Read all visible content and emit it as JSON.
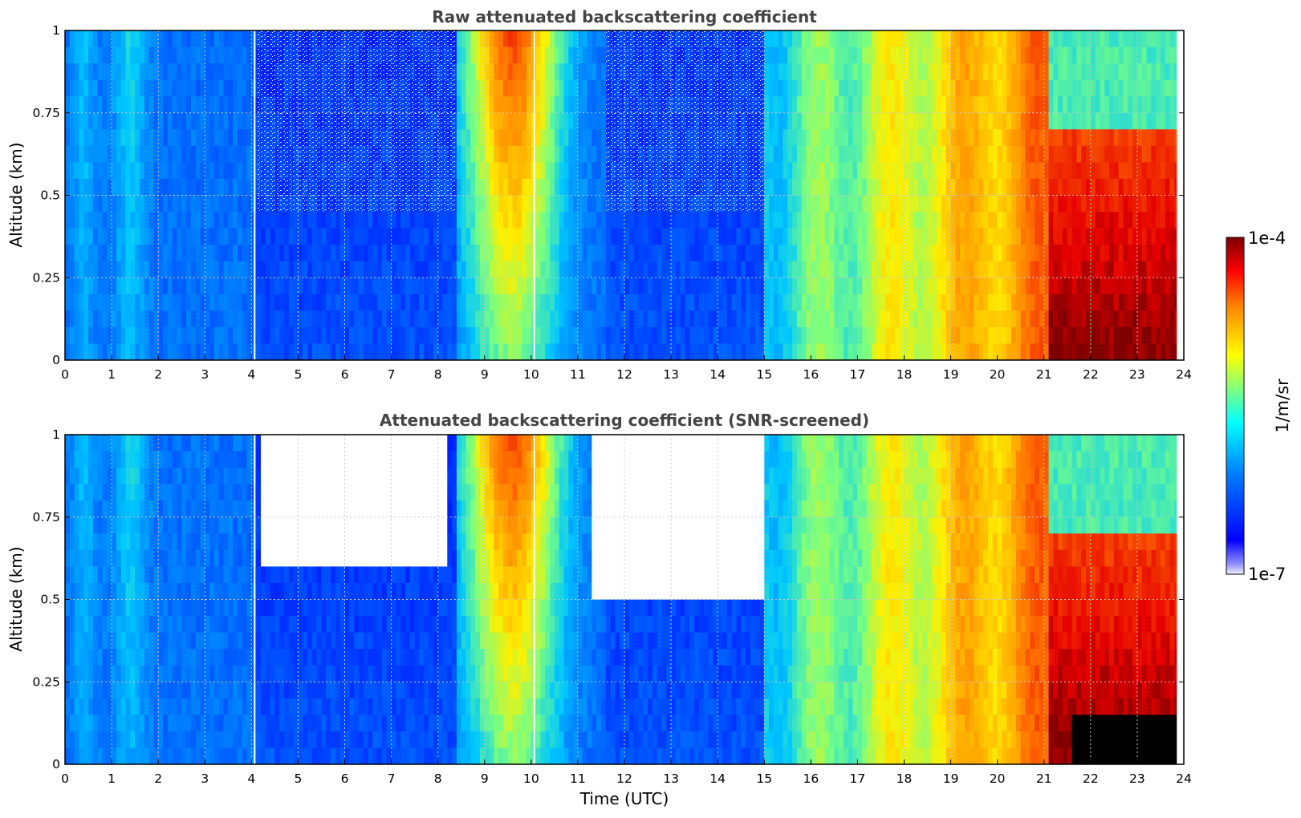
{
  "chart_data": [
    {
      "type": "heatmap",
      "title": "Raw attenuated backscattering coefficient",
      "xlabel": "",
      "ylabel": "Altitude (km)",
      "xlim": [
        0,
        24
      ],
      "ylim": [
        0,
        1
      ],
      "x_ticks": [
        "0",
        "1",
        "2",
        "3",
        "4",
        "5",
        "6",
        "7",
        "8",
        "9",
        "10",
        "11",
        "12",
        "13",
        "14",
        "15",
        "16",
        "17",
        "18",
        "19",
        "20",
        "21",
        "22",
        "23",
        "24"
      ],
      "y_ticks": [
        "0",
        "0.25",
        "0.5",
        "0.75",
        "1"
      ],
      "grid": true,
      "screened": false,
      "colormap": "jet",
      "log_scale": true,
      "regimes": [
        {
          "from_hour": 0,
          "to_hour": 4.1,
          "description": "blue to light-blue, brighter near 0.4 and 1.4"
        },
        {
          "from_hour": 4.1,
          "to_hour": 8.4,
          "description": "blue with noisy white speckle aloft"
        },
        {
          "from_hour": 8.4,
          "to_hour": 11.6,
          "description": "cyan-green plumes, yellow-orange near top"
        },
        {
          "from_hour": 11.6,
          "to_hour": 15.0,
          "description": "blue with speckle aloft"
        },
        {
          "from_hour": 15.0,
          "to_hour": 21.1,
          "description": "green to red, increasing"
        },
        {
          "from_hour": 21.1,
          "to_hour": 23.9,
          "description": "red to dark red near surface, cyan peaks aloft"
        }
      ]
    },
    {
      "type": "heatmap",
      "title": "Attenuated backscattering coefficient (SNR-screened)",
      "xlabel": "Time (UTC)",
      "ylabel": "Altitude (km)",
      "xlim": [
        0,
        24
      ],
      "ylim": [
        0,
        1
      ],
      "x_ticks": [
        "0",
        "1",
        "2",
        "3",
        "4",
        "5",
        "6",
        "7",
        "8",
        "9",
        "10",
        "11",
        "12",
        "13",
        "14",
        "15",
        "16",
        "17",
        "18",
        "19",
        "20",
        "21",
        "22",
        "23",
        "24"
      ],
      "y_ticks": [
        "0",
        "0.25",
        "0.5",
        "0.75",
        "1"
      ],
      "grid": true,
      "screened": true,
      "colormap": "jet",
      "log_scale": true,
      "masked_regions": [
        {
          "from_hour": 4.2,
          "to_hour": 8.2,
          "above_km": 0.6
        },
        {
          "from_hour": 11.3,
          "to_hour": 15.0,
          "above_km": 0.5
        }
      ],
      "near_surface_black_from_hour": 21.6
    }
  ],
  "colorbar": {
    "min_label": "1e-7",
    "max_label": "1e-4",
    "label": "1/m/sr",
    "colors": [
      "#00007f",
      "#0000ff",
      "#007fff",
      "#00ffff",
      "#7fff7f",
      "#ffff00",
      "#ff7f00",
      "#ff0000",
      "#7f0000"
    ]
  }
}
